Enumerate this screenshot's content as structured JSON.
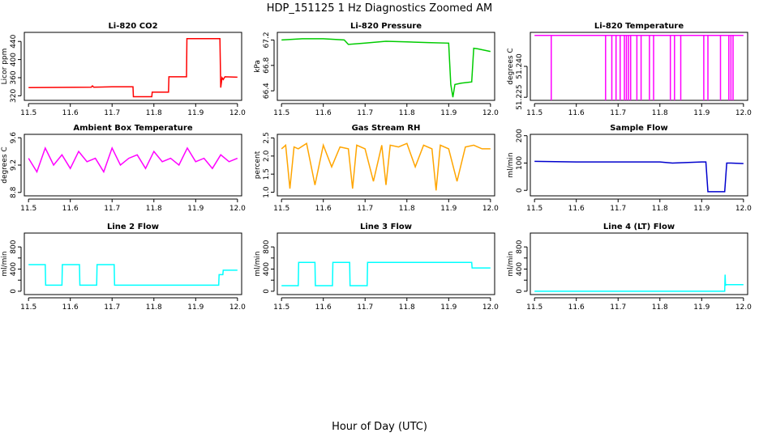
{
  "figure": {
    "title": "HDP_151125  1 Hz Diagnostics Zoomed AM",
    "xlabel": "Hour of Day (UTC)"
  },
  "chart_data": [
    {
      "type": "line",
      "title": "Li-820 CO2",
      "ylabel": "Licor ppm",
      "color": "#ff0000",
      "xlim": [
        11.49,
        12.01
      ],
      "ylim": [
        310,
        460
      ],
      "xticks": [
        11.5,
        11.6,
        11.7,
        11.8,
        11.9,
        12.0
      ],
      "xtick_labels": [
        "11.5",
        "11.6",
        "11.7",
        "11.8",
        "11.9",
        "12.0"
      ],
      "yticks": [
        320,
        360,
        400,
        440
      ],
      "ytick_labels": [
        "320",
        "360",
        "400",
        "440"
      ],
      "series": [
        {
          "x": [
            11.5,
            11.65,
            11.653,
            11.656,
            11.7,
            11.75,
            11.751,
            11.795,
            11.796,
            11.835,
            11.836,
            11.878,
            11.879,
            11.958,
            11.96,
            11.963,
            11.966,
            11.97,
            12.0
          ],
          "y": [
            338,
            339,
            342,
            339,
            340,
            340,
            318,
            318,
            328,
            328,
            362,
            362,
            446,
            446,
            338,
            360,
            356,
            362,
            361
          ]
        }
      ]
    },
    {
      "type": "line",
      "title": "Li-820 Pressure",
      "ylabel": "kPa",
      "color": "#00cc00",
      "xlim": [
        11.49,
        12.01
      ],
      "ylim": [
        66.25,
        67.32
      ],
      "xticks": [
        11.5,
        11.6,
        11.7,
        11.8,
        11.9,
        12.0
      ],
      "xtick_labels": [
        "11.5",
        "11.6",
        "11.7",
        "11.8",
        "11.9",
        "12.0"
      ],
      "yticks": [
        66.4,
        66.8,
        67.2
      ],
      "ytick_labels": [
        "66.4",
        "66.8",
        "67.2"
      ],
      "series": [
        {
          "x": [
            11.5,
            11.55,
            11.6,
            11.65,
            11.66,
            11.7,
            11.75,
            11.8,
            11.85,
            11.9,
            11.905,
            11.91,
            11.915,
            11.93,
            11.955,
            11.96,
            11.97,
            12.0
          ],
          "y": [
            67.2,
            67.22,
            67.22,
            67.2,
            67.13,
            67.15,
            67.18,
            67.17,
            67.16,
            67.15,
            66.5,
            66.3,
            66.5,
            66.52,
            66.54,
            67.07,
            67.06,
            67.02
          ]
        }
      ]
    },
    {
      "type": "line",
      "title": "Li-820 Temperature",
      "ylabel": "degrees C",
      "color": "#ff00ff",
      "xlim": [
        11.49,
        12.01
      ],
      "ylim": [
        51.2235,
        51.2565
      ],
      "xticks": [
        11.5,
        11.6,
        11.7,
        11.8,
        11.9,
        12.0
      ],
      "xtick_labels": [
        "11.5",
        "11.6",
        "11.7",
        "11.8",
        "11.9",
        "12.0"
      ],
      "yticks": [
        51.225,
        51.24
      ],
      "ytick_labels": [
        "51.225",
        "51.240"
      ],
      "series": [
        {
          "x": [
            11.5,
            11.54,
            11.54,
            11.54,
            11.67,
            11.67,
            11.67,
            11.685,
            11.685,
            11.685,
            11.695,
            11.695,
            11.695,
            11.705,
            11.705,
            11.705,
            11.715,
            11.715,
            11.715,
            11.72,
            11.72,
            11.72,
            11.725,
            11.725,
            11.725,
            11.73,
            11.73,
            11.73,
            11.745,
            11.745,
            11.745,
            11.755,
            11.755,
            11.755,
            11.775,
            11.775,
            11.775,
            11.785,
            11.785,
            11.785,
            11.825,
            11.825,
            11.825,
            11.835,
            11.835,
            11.835,
            11.85,
            11.85,
            11.85,
            11.905,
            11.905,
            11.905,
            11.915,
            11.915,
            11.915,
            11.945,
            11.945,
            11.945,
            11.965,
            11.965,
            11.965,
            11.97,
            11.97,
            11.97,
            11.975,
            11.975,
            11.975,
            12.0
          ],
          "y": [
            51.255,
            51.255,
            51.2235,
            51.255,
            51.255,
            51.2235,
            51.255,
            51.255,
            51.2235,
            51.255,
            51.255,
            51.2235,
            51.255,
            51.255,
            51.2235,
            51.255,
            51.255,
            51.2235,
            51.255,
            51.255,
            51.2235,
            51.255,
            51.255,
            51.2235,
            51.255,
            51.255,
            51.2235,
            51.255,
            51.255,
            51.2235,
            51.255,
            51.255,
            51.2235,
            51.255,
            51.255,
            51.2235,
            51.255,
            51.255,
            51.2235,
            51.255,
            51.255,
            51.2235,
            51.255,
            51.255,
            51.2235,
            51.255,
            51.255,
            51.2235,
            51.255,
            51.255,
            51.2235,
            51.255,
            51.255,
            51.2235,
            51.255,
            51.255,
            51.2235,
            51.255,
            51.255,
            51.2235,
            51.255,
            51.255,
            51.2235,
            51.255,
            51.255,
            51.2235,
            51.255,
            51.255
          ]
        }
      ]
    },
    {
      "type": "line",
      "title": "Ambient Box Temperature",
      "ylabel": "degrees C",
      "color": "#ff00ff",
      "xlim": [
        11.49,
        12.01
      ],
      "ylim": [
        8.75,
        9.65
      ],
      "xticks": [
        11.5,
        11.6,
        11.7,
        11.8,
        11.9,
        12.0
      ],
      "xtick_labels": [
        "11.5",
        "11.6",
        "11.7",
        "11.8",
        "11.9",
        "12.0"
      ],
      "yticks": [
        8.8,
        9.2,
        9.6
      ],
      "ytick_labels": [
        "8.8",
        "9.2",
        "9.6"
      ],
      "series": [
        {
          "x": [
            11.5,
            11.52,
            11.54,
            11.56,
            11.58,
            11.6,
            11.62,
            11.64,
            11.66,
            11.68,
            11.7,
            11.72,
            11.74,
            11.76,
            11.78,
            11.8,
            11.82,
            11.84,
            11.86,
            11.88,
            11.9,
            11.92,
            11.94,
            11.96,
            11.98,
            12.0
          ],
          "y": [
            9.3,
            9.1,
            9.45,
            9.2,
            9.35,
            9.15,
            9.4,
            9.25,
            9.3,
            9.1,
            9.45,
            9.2,
            9.3,
            9.35,
            9.15,
            9.4,
            9.25,
            9.3,
            9.2,
            9.45,
            9.25,
            9.3,
            9.15,
            9.35,
            9.25,
            9.3
          ]
        }
      ]
    },
    {
      "type": "line",
      "title": "Gas Stream RH",
      "ylabel": "percent",
      "color": "#ffa500",
      "xlim": [
        11.49,
        12.01
      ],
      "ylim": [
        0.9,
        2.6
      ],
      "xticks": [
        11.5,
        11.6,
        11.7,
        11.8,
        11.9,
        12.0
      ],
      "xtick_labels": [
        "11.5",
        "11.6",
        "11.7",
        "11.8",
        "11.9",
        "12.0"
      ],
      "yticks": [
        1.0,
        1.5,
        2.0,
        2.5
      ],
      "ytick_labels": [
        "1.0",
        "1.5",
        "2.0",
        "2.5"
      ],
      "series": [
        {
          "x": [
            11.5,
            11.51,
            11.52,
            11.53,
            11.54,
            11.56,
            11.58,
            11.6,
            11.62,
            11.64,
            11.66,
            11.67,
            11.68,
            11.7,
            11.72,
            11.74,
            11.75,
            11.76,
            11.78,
            11.8,
            11.82,
            11.84,
            11.86,
            11.87,
            11.88,
            11.9,
            11.92,
            11.94,
            11.96,
            11.98,
            12.0
          ],
          "y": [
            2.2,
            2.3,
            1.1,
            2.25,
            2.2,
            2.35,
            1.2,
            2.3,
            1.7,
            2.25,
            2.2,
            1.1,
            2.3,
            2.2,
            1.3,
            2.3,
            1.2,
            2.3,
            2.25,
            2.35,
            1.7,
            2.3,
            2.2,
            1.05,
            2.3,
            2.2,
            1.3,
            2.25,
            2.3,
            2.2,
            2.2
          ]
        }
      ]
    },
    {
      "type": "line",
      "title": "Sample Flow",
      "ylabel": "ml/min",
      "color": "#0000cd",
      "xlim": [
        11.49,
        12.01
      ],
      "ylim": [
        -20,
        205
      ],
      "xticks": [
        11.5,
        11.6,
        11.7,
        11.8,
        11.9,
        12.0
      ],
      "xtick_labels": [
        "11.5",
        "11.6",
        "11.7",
        "11.8",
        "11.9",
        "12.0"
      ],
      "yticks": [
        0,
        100,
        200
      ],
      "ytick_labels": [
        "0",
        "100",
        "200"
      ],
      "series": [
        {
          "x": [
            11.5,
            11.6,
            11.7,
            11.8,
            11.83,
            11.9,
            11.91,
            11.915,
            11.955,
            11.96,
            11.97,
            12.0
          ],
          "y": [
            106,
            104,
            104,
            104,
            100,
            104,
            104,
            -5,
            -5,
            100,
            100,
            98
          ]
        }
      ]
    },
    {
      "type": "line",
      "title": "Line 2 Flow",
      "ylabel": "ml/min",
      "color": "#00ffff",
      "xlim": [
        11.49,
        12.01
      ],
      "ylim": [
        -60,
        1050
      ],
      "xticks": [
        11.5,
        11.6,
        11.7,
        11.8,
        11.9,
        12.0
      ],
      "xtick_labels": [
        "11.5",
        "11.6",
        "11.7",
        "11.8",
        "11.9",
        "12.0"
      ],
      "yticks": [
        0,
        200,
        400,
        600,
        800
      ],
      "ytick_labels": [
        "0",
        "400",
        "800"
      ],
      "series": [
        {
          "x": [
            11.5,
            11.54,
            11.541,
            11.58,
            11.581,
            11.622,
            11.623,
            11.663,
            11.664,
            11.705,
            11.706,
            11.955,
            11.956,
            11.965,
            11.966,
            12.0
          ],
          "y": [
            480,
            480,
            110,
            110,
            480,
            480,
            110,
            110,
            480,
            480,
            110,
            110,
            300,
            300,
            380,
            380
          ]
        }
      ]
    },
    {
      "type": "line",
      "title": "Line 3 Flow",
      "ylabel": "ml/min",
      "color": "#00ffff",
      "xlim": [
        11.49,
        12.01
      ],
      "ylim": [
        -60,
        1050
      ],
      "xticks": [
        11.5,
        11.6,
        11.7,
        11.8,
        11.9,
        12.0
      ],
      "xtick_labels": [
        "11.5",
        "11.6",
        "11.7",
        "11.8",
        "11.9",
        "12.0"
      ],
      "yticks": [
        0,
        200,
        400,
        600,
        800
      ],
      "ytick_labels": [
        "0",
        "400",
        "800"
      ],
      "series": [
        {
          "x": [
            11.5,
            11.54,
            11.541,
            11.58,
            11.581,
            11.622,
            11.623,
            11.663,
            11.664,
            11.705,
            11.706,
            11.955,
            11.956,
            12.0
          ],
          "y": [
            100,
            100,
            520,
            520,
            100,
            100,
            520,
            520,
            100,
            100,
            520,
            520,
            420,
            420
          ]
        }
      ]
    },
    {
      "type": "line",
      "title": "Line 4 (LT) Flow",
      "ylabel": "ml/min",
      "color": "#00ffff",
      "xlim": [
        11.49,
        12.01
      ],
      "ylim": [
        -60,
        1050
      ],
      "xticks": [
        11.5,
        11.6,
        11.7,
        11.8,
        11.9,
        12.0
      ],
      "xtick_labels": [
        "11.5",
        "11.6",
        "11.7",
        "11.8",
        "11.9",
        "12.0"
      ],
      "yticks": [
        0,
        200,
        400,
        600,
        800
      ],
      "ytick_labels": [
        "0",
        "400",
        "800"
      ],
      "series": [
        {
          "x": [
            11.5,
            11.955,
            11.956,
            11.957,
            11.958,
            11.96,
            12.0
          ],
          "y": [
            0,
            0,
            300,
            100,
            120,
            120,
            120
          ]
        }
      ]
    }
  ]
}
